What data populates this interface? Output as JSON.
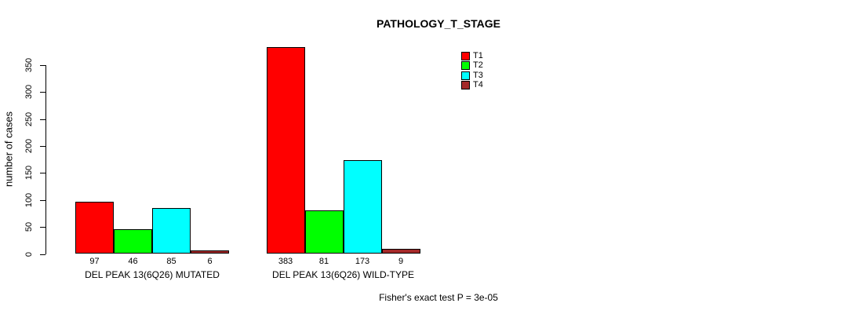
{
  "chart_data": {
    "type": "bar",
    "title": "PATHOLOGY_T_STAGE",
    "ylabel": "number of cases",
    "xlabel": "",
    "ylim": [
      0,
      350
    ],
    "yticks": [
      0,
      50,
      100,
      150,
      200,
      250,
      300,
      350
    ],
    "grid": false,
    "legend_position": "top-right",
    "bar_value_labels": true,
    "categories": [
      "DEL PEAK 13(6Q26) MUTATED",
      "DEL PEAK 13(6Q26) WILD-TYPE"
    ],
    "series": [
      {
        "name": "T1",
        "color": "#FF0000",
        "values": [
          97,
          383
        ]
      },
      {
        "name": "T2",
        "color": "#00FF00",
        "values": [
          46,
          81
        ]
      },
      {
        "name": "T3",
        "color": "#00FFFF",
        "values": [
          85,
          173
        ]
      },
      {
        "name": "T4",
        "color": "#A52A2A",
        "values": [
          6,
          9
        ]
      }
    ],
    "annotation": "Fisher's exact test P = 3e-05"
  }
}
